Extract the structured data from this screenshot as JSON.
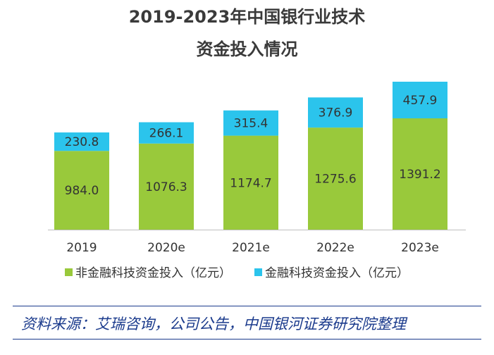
{
  "title_line1": "2019-2023年中国银行业技术",
  "title_line2": "资金投入情况",
  "source": "资料来源：艾瑞咨询，公司公告，中国银河证券研究院整理",
  "colors": {
    "non_fintech": "#99c93b",
    "fintech": "#2bc4ec",
    "axis": "#bfbfbf"
  },
  "chart_data": {
    "type": "bar",
    "stacked": true,
    "title": "2019-2023年中国银行业技术资金投入情况",
    "categories": [
      "2019",
      "2020e",
      "2021e",
      "2022e",
      "2023e"
    ],
    "series": [
      {
        "name": "非金融科技资金投入（亿元）",
        "values": [
          984.0,
          1076.3,
          1174.7,
          1275.6,
          1391.2
        ],
        "labels": [
          "984.0",
          "1076.3",
          "1174.7",
          "1275.6",
          "1391.2"
        ]
      },
      {
        "name": "金融科技资金投入（亿元）",
        "values": [
          230.8,
          266.1,
          315.4,
          376.9,
          457.9
        ],
        "labels": [
          "230.8",
          "266.1",
          "315.4",
          "376.9",
          "457.9"
        ]
      }
    ],
    "ylim": [
      0,
      2000
    ],
    "xlabel": "",
    "ylabel": "",
    "legend_position": "bottom"
  }
}
